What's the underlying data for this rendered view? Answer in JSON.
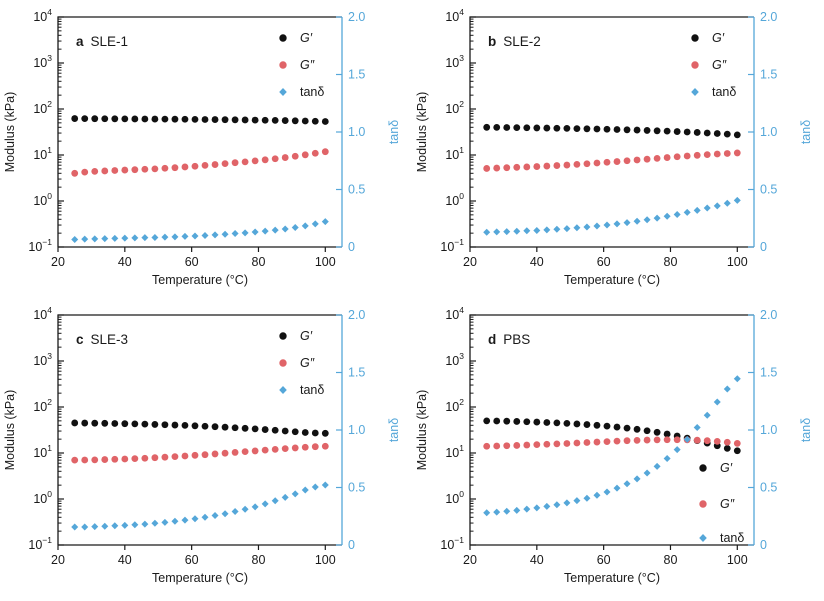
{
  "figure": {
    "type": "2x2-panel-scientific-plot",
    "background": "#ffffff"
  },
  "style": {
    "axis_color": "#1a1a1a",
    "text_color": "#1a1a1a",
    "gprime_color": "#111111",
    "gdoubleprime_color": "#e06468",
    "tandelta_color": "#55a7d9"
  },
  "chart_data": [
    {
      "type": "scatter",
      "panel": "a",
      "sample": "SLE-1",
      "xlabel": "Temperature (°C)",
      "ylabel_left": "Modulus (kPa)",
      "ylabel_right": "tanδ",
      "xlim": [
        20,
        105
      ],
      "xticks": [
        20,
        40,
        60,
        80,
        100
      ],
      "xtick_labels": [
        "20",
        "40",
        "60",
        "80",
        "100"
      ],
      "ylim_left_log10": [
        -1,
        4
      ],
      "ytick_exponents_left": [
        4,
        3,
        2,
        1,
        0,
        -1
      ],
      "ylim_right": [
        0,
        2
      ],
      "yticks_right": [
        0,
        0.5,
        1.0,
        1.5,
        2.0
      ],
      "ytick_labels_right": [
        "0",
        "0.5",
        "1.0",
        "1.5",
        "2.0"
      ],
      "legend_position": "top-right",
      "x": [
        25,
        28,
        31,
        34,
        37,
        40,
        43,
        46,
        49,
        52,
        55,
        58,
        61,
        64,
        67,
        70,
        73,
        76,
        79,
        82,
        85,
        88,
        91,
        94,
        97,
        100
      ],
      "series": [
        {
          "name": "G′",
          "marker": "circle",
          "axis": "left",
          "color": "#111111",
          "italic": true,
          "values": [
            62,
            61.8,
            61.6,
            61.4,
            61.2,
            61,
            60.8,
            60.6,
            60.4,
            60.2,
            60,
            59.8,
            59.5,
            59.2,
            58.9,
            58.6,
            58.2,
            57.8,
            57.4,
            57,
            56.5,
            56,
            55.4,
            54.8,
            54.1,
            53.4
          ]
        },
        {
          "name": "G″",
          "marker": "circle",
          "axis": "left",
          "color": "#e06468",
          "italic": true,
          "values": [
            4.0,
            4.25,
            4.4,
            4.5,
            4.6,
            4.7,
            4.8,
            4.9,
            5.0,
            5.15,
            5.3,
            5.5,
            5.7,
            5.95,
            6.2,
            6.5,
            6.8,
            7.1,
            7.45,
            7.85,
            8.3,
            8.8,
            9.4,
            10.1,
            10.9,
            11.8
          ]
        },
        {
          "name": "tanδ",
          "marker": "diamond",
          "axis": "right",
          "color": "#55a7d9",
          "italic": false,
          "values": [
            0.065,
            0.069,
            0.071,
            0.073,
            0.075,
            0.077,
            0.079,
            0.081,
            0.083,
            0.086,
            0.088,
            0.092,
            0.096,
            0.1,
            0.105,
            0.111,
            0.117,
            0.123,
            0.13,
            0.138,
            0.147,
            0.157,
            0.17,
            0.184,
            0.201,
            0.221
          ]
        }
      ]
    },
    {
      "type": "scatter",
      "panel": "b",
      "sample": "SLE-2",
      "xlabel": "Temperature (°C)",
      "ylabel_left": "Modulus (kPa)",
      "ylabel_right": "tanδ",
      "xlim": [
        20,
        105
      ],
      "xticks": [
        20,
        40,
        60,
        80,
        100
      ],
      "xtick_labels": [
        "20",
        "40",
        "60",
        "80",
        "100"
      ],
      "ylim_left_log10": [
        -1,
        4
      ],
      "ytick_exponents_left": [
        4,
        3,
        2,
        1,
        0,
        -1
      ],
      "ylim_right": [
        0,
        2
      ],
      "yticks_right": [
        0,
        0.5,
        1.0,
        1.5,
        2.0
      ],
      "ytick_labels_right": [
        "0",
        "0.5",
        "1.0",
        "1.5",
        "2.0"
      ],
      "legend_position": "top-right",
      "x": [
        25,
        28,
        31,
        34,
        37,
        40,
        43,
        46,
        49,
        52,
        55,
        58,
        61,
        64,
        67,
        70,
        73,
        76,
        79,
        82,
        85,
        88,
        91,
        94,
        97,
        100
      ],
      "series": [
        {
          "name": "G′",
          "marker": "circle",
          "axis": "left",
          "color": "#111111",
          "italic": true,
          "values": [
            40,
            39.8,
            39.6,
            39.4,
            39.1,
            38.8,
            38.5,
            38.2,
            37.9,
            37.5,
            37.1,
            36.7,
            36.3,
            35.8,
            35.3,
            34.8,
            34.2,
            33.6,
            33,
            32.3,
            31.6,
            30.9,
            30.1,
            29.3,
            28.4,
            27.4
          ]
        },
        {
          "name": "G″",
          "marker": "circle",
          "axis": "left",
          "color": "#e06468",
          "italic": true,
          "values": [
            5.1,
            5.2,
            5.3,
            5.4,
            5.5,
            5.6,
            5.75,
            5.9,
            6.05,
            6.25,
            6.45,
            6.7,
            6.95,
            7.2,
            7.5,
            7.8,
            8.1,
            8.45,
            8.8,
            9.15,
            9.5,
            9.85,
            10.2,
            10.5,
            10.8,
            11.1
          ]
        },
        {
          "name": "tanδ",
          "marker": "diamond",
          "axis": "right",
          "color": "#55a7d9",
          "italic": false,
          "values": [
            0.128,
            0.131,
            0.134,
            0.137,
            0.141,
            0.144,
            0.149,
            0.154,
            0.16,
            0.167,
            0.174,
            0.183,
            0.191,
            0.201,
            0.212,
            0.224,
            0.237,
            0.251,
            0.267,
            0.283,
            0.301,
            0.319,
            0.339,
            0.358,
            0.38,
            0.405
          ]
        }
      ]
    },
    {
      "type": "scatter",
      "panel": "c",
      "sample": "SLE-3",
      "xlabel": "Temperature (°C)",
      "ylabel_left": "Modulus (kPa)",
      "ylabel_right": "tanδ",
      "xlim": [
        20,
        105
      ],
      "xticks": [
        20,
        40,
        60,
        80,
        100
      ],
      "xtick_labels": [
        "20",
        "40",
        "60",
        "80",
        "100"
      ],
      "ylim_left_log10": [
        -1,
        4
      ],
      "ytick_exponents_left": [
        4,
        3,
        2,
        1,
        0,
        -1
      ],
      "ylim_right": [
        0,
        2
      ],
      "yticks_right": [
        0,
        0.5,
        1.0,
        1.5,
        2.0
      ],
      "ytick_labels_right": [
        "0",
        "0.5",
        "1.0",
        "1.5",
        "2.0"
      ],
      "legend_position": "top-right",
      "x": [
        25,
        28,
        31,
        34,
        37,
        40,
        43,
        46,
        49,
        52,
        55,
        58,
        61,
        64,
        67,
        70,
        73,
        76,
        79,
        82,
        85,
        88,
        91,
        94,
        97,
        100
      ],
      "series": [
        {
          "name": "G′",
          "marker": "circle",
          "axis": "left",
          "color": "#111111",
          "italic": true,
          "values": [
            45,
            44.8,
            44.5,
            44.2,
            43.8,
            43.4,
            42.9,
            42.4,
            41.8,
            41.2,
            40.5,
            39.8,
            39,
            38.2,
            37.3,
            36.4,
            35.4,
            34.4,
            33.4,
            32.3,
            31.2,
            30.1,
            29,
            27.9,
            27.2,
            26.8
          ]
        },
        {
          "name": "G″",
          "marker": "circle",
          "axis": "left",
          "color": "#e06468",
          "italic": true,
          "values": [
            7.0,
            7.05,
            7.1,
            7.2,
            7.3,
            7.4,
            7.55,
            7.7,
            7.9,
            8.1,
            8.35,
            8.6,
            8.9,
            9.2,
            9.55,
            9.9,
            10.3,
            10.7,
            11.1,
            11.55,
            12,
            12.45,
            12.9,
            13.35,
            13.7,
            14.0
          ]
        },
        {
          "name": "tanδ",
          "marker": "diamond",
          "axis": "right",
          "color": "#55a7d9",
          "italic": false,
          "values": [
            0.156,
            0.157,
            0.16,
            0.163,
            0.167,
            0.171,
            0.176,
            0.182,
            0.189,
            0.197,
            0.206,
            0.216,
            0.228,
            0.241,
            0.256,
            0.272,
            0.291,
            0.311,
            0.332,
            0.358,
            0.385,
            0.414,
            0.445,
            0.478,
            0.504,
            0.522
          ]
        }
      ]
    },
    {
      "type": "scatter",
      "panel": "d",
      "sample": "PBS",
      "xlabel": "Temperature (°C)",
      "ylabel_left": "Modulus (kPa)",
      "ylabel_right": "tanδ",
      "xlim": [
        20,
        105
      ],
      "xticks": [
        20,
        40,
        60,
        80,
        100
      ],
      "xtick_labels": [
        "20",
        "40",
        "60",
        "80",
        "100"
      ],
      "ylim_left_log10": [
        -1,
        4
      ],
      "ytick_exponents_left": [
        4,
        3,
        2,
        1,
        0,
        -1
      ],
      "ylim_right": [
        0,
        2
      ],
      "yticks_right": [
        0,
        0.5,
        1.0,
        1.5,
        2.0
      ],
      "ytick_labels_right": [
        "0",
        "0.5",
        "1.0",
        "1.5",
        "2.0"
      ],
      "legend_position": "bottom-right",
      "x": [
        25,
        28,
        31,
        34,
        37,
        40,
        43,
        46,
        49,
        52,
        55,
        58,
        61,
        64,
        67,
        70,
        73,
        76,
        79,
        82,
        85,
        88,
        91,
        94,
        97,
        100
      ],
      "series": [
        {
          "name": "G′",
          "marker": "circle",
          "axis": "left",
          "color": "#111111",
          "italic": true,
          "values": [
            50,
            49.6,
            49.1,
            48.5,
            47.8,
            47,
            46.1,
            45.1,
            44,
            42.8,
            41.5,
            40,
            38.4,
            36.6,
            34.7,
            32.7,
            30.5,
            28.2,
            25.8,
            23.4,
            21,
            18.6,
            16.4,
            14.4,
            12.6,
            11.2
          ]
        },
        {
          "name": "G″",
          "marker": "circle",
          "axis": "left",
          "color": "#e06468",
          "italic": true,
          "values": [
            14,
            14.2,
            14.4,
            14.6,
            14.9,
            15.2,
            15.5,
            15.8,
            16.1,
            16.5,
            16.9,
            17.3,
            17.7,
            18.1,
            18.5,
            18.8,
            19.1,
            19.3,
            19.4,
            19.4,
            19.3,
            19,
            18.5,
            17.9,
            17.1,
            16.2
          ]
        },
        {
          "name": "tanδ",
          "marker": "diamond",
          "axis": "right",
          "color": "#55a7d9",
          "italic": false,
          "values": [
            0.28,
            0.286,
            0.293,
            0.301,
            0.312,
            0.323,
            0.336,
            0.35,
            0.366,
            0.386,
            0.407,
            0.433,
            0.461,
            0.495,
            0.533,
            0.575,
            0.626,
            0.684,
            0.752,
            0.829,
            0.919,
            1.022,
            1.128,
            1.243,
            1.357,
            1.446
          ]
        }
      ]
    }
  ]
}
